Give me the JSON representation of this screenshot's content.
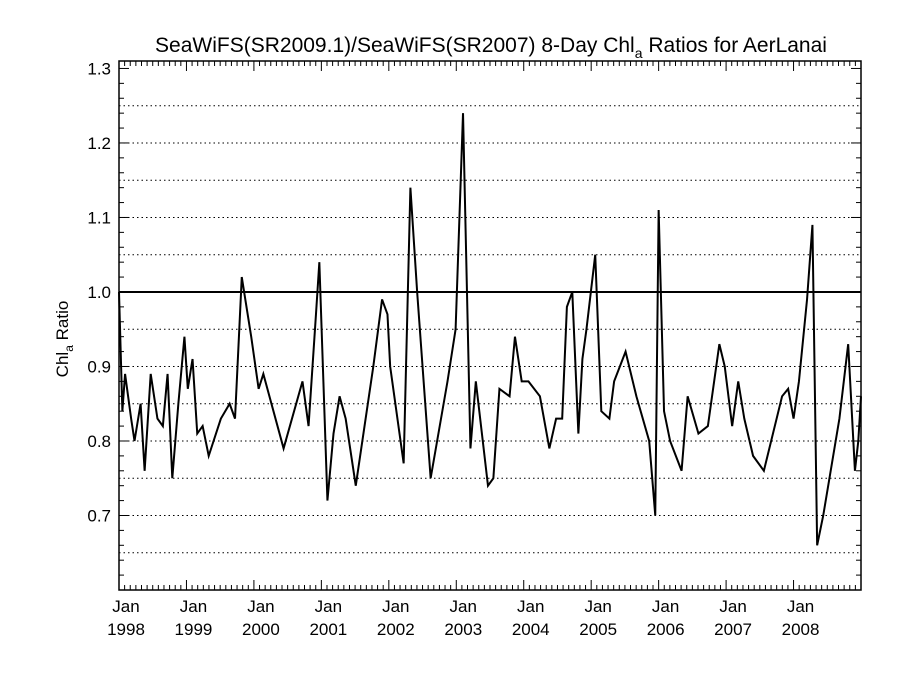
{
  "chart_data": {
    "type": "line",
    "title_main": "SeaWiFS(SR2009.1)/SeaWiFS(SR2007) 8-Day Chl",
    "title_sub": "a",
    "title_tail": " Ratios for AerLanai",
    "ylabel_main": "Chl",
    "ylabel_sub": "a",
    "ylabel_tail": " Ratio",
    "ylim": [
      0.6,
      1.31
    ],
    "xlim": [
      1998.0,
      2009.0
    ],
    "reference_line": 1.0,
    "y_ticks": [
      "0.7",
      "0.8",
      "0.9",
      "1.0",
      "1.1",
      "1.2",
      "1.3"
    ],
    "x_ticks": [
      {
        "month": "Jan",
        "year": "1998"
      },
      {
        "month": "Jan",
        "year": "1999"
      },
      {
        "month": "Jan",
        "year": "2000"
      },
      {
        "month": "Jan",
        "year": "2001"
      },
      {
        "month": "Jan",
        "year": "2002"
      },
      {
        "month": "Jan",
        "year": "2003"
      },
      {
        "month": "Jan",
        "year": "2004"
      },
      {
        "month": "Jan",
        "year": "2005"
      },
      {
        "month": "Jan",
        "year": "2006"
      },
      {
        "month": "Jan",
        "year": "2007"
      },
      {
        "month": "Jan",
        "year": "2008"
      }
    ],
    "grid": "dotted horizontal lines at 0.05 intervals",
    "series": [
      {
        "points": [
          [
            1998.0,
            1.0
          ],
          [
            1998.05,
            0.84
          ],
          [
            1998.09,
            0.89
          ],
          [
            1998.18,
            0.83
          ],
          [
            1998.23,
            0.8
          ],
          [
            1998.32,
            0.85
          ],
          [
            1998.38,
            0.76
          ],
          [
            1998.47,
            0.89
          ],
          [
            1998.57,
            0.83
          ],
          [
            1998.65,
            0.82
          ],
          [
            1998.72,
            0.89
          ],
          [
            1998.79,
            0.75
          ],
          [
            1998.88,
            0.85
          ],
          [
            1998.97,
            0.94
          ],
          [
            1999.02,
            0.87
          ],
          [
            1999.09,
            0.91
          ],
          [
            1999.16,
            0.81
          ],
          [
            1999.24,
            0.82
          ],
          [
            1999.33,
            0.78
          ],
          [
            1999.51,
            0.83
          ],
          [
            1999.64,
            0.85
          ],
          [
            1999.72,
            0.83
          ],
          [
            1999.82,
            1.02
          ],
          [
            1999.96,
            0.94
          ],
          [
            2000.07,
            0.87
          ],
          [
            2000.14,
            0.89
          ],
          [
            2000.44,
            0.79
          ],
          [
            2000.72,
            0.88
          ],
          [
            2000.81,
            0.82
          ],
          [
            2000.92,
            0.97
          ],
          [
            2000.97,
            1.04
          ],
          [
            2001.09,
            0.72
          ],
          [
            2001.18,
            0.81
          ],
          [
            2001.27,
            0.86
          ],
          [
            2001.36,
            0.83
          ],
          [
            2001.51,
            0.74
          ],
          [
            2001.77,
            0.9
          ],
          [
            2001.9,
            0.99
          ],
          [
            2001.98,
            0.97
          ],
          [
            2002.02,
            0.9
          ],
          [
            2002.22,
            0.77
          ],
          [
            2002.32,
            1.14
          ],
          [
            2002.42,
            1.0
          ],
          [
            2002.62,
            0.75
          ],
          [
            2002.87,
            0.88
          ],
          [
            2002.99,
            0.95
          ],
          [
            2003.1,
            1.24
          ],
          [
            2003.21,
            0.79
          ],
          [
            2003.29,
            0.88
          ],
          [
            2003.47,
            0.74
          ],
          [
            2003.55,
            0.75
          ],
          [
            2003.64,
            0.87
          ],
          [
            2003.79,
            0.86
          ],
          [
            2003.87,
            0.94
          ],
          [
            2003.97,
            0.88
          ],
          [
            2004.07,
            0.88
          ],
          [
            2004.24,
            0.86
          ],
          [
            2004.38,
            0.79
          ],
          [
            2004.48,
            0.83
          ],
          [
            2004.57,
            0.83
          ],
          [
            2004.64,
            0.98
          ],
          [
            2004.72,
            1.0
          ],
          [
            2004.81,
            0.81
          ],
          [
            2004.87,
            0.91
          ],
          [
            2004.93,
            0.95
          ],
          [
            2005.06,
            1.05
          ],
          [
            2005.15,
            0.84
          ],
          [
            2005.27,
            0.83
          ],
          [
            2005.34,
            0.88
          ],
          [
            2005.51,
            0.92
          ],
          [
            2005.67,
            0.86
          ],
          [
            2005.86,
            0.8
          ],
          [
            2005.95,
            0.7
          ],
          [
            2006.0,
            1.11
          ],
          [
            2006.08,
            0.84
          ],
          [
            2006.17,
            0.8
          ],
          [
            2006.34,
            0.76
          ],
          [
            2006.43,
            0.86
          ],
          [
            2006.59,
            0.81
          ],
          [
            2006.73,
            0.82
          ],
          [
            2006.9,
            0.93
          ],
          [
            2006.98,
            0.9
          ],
          [
            2007.09,
            0.82
          ],
          [
            2007.18,
            0.88
          ],
          [
            2007.27,
            0.83
          ],
          [
            2007.4,
            0.78
          ],
          [
            2007.56,
            0.76
          ],
          [
            2007.83,
            0.86
          ],
          [
            2007.92,
            0.87
          ],
          [
            2008.0,
            0.83
          ],
          [
            2008.08,
            0.88
          ],
          [
            2008.2,
            0.99
          ],
          [
            2008.28,
            1.09
          ],
          [
            2008.35,
            0.66
          ],
          [
            2008.44,
            0.7
          ],
          [
            2008.68,
            0.83
          ],
          [
            2008.81,
            0.93
          ],
          [
            2008.91,
            0.76
          ],
          [
            2008.96,
            0.8
          ],
          [
            2009.0,
            0.86
          ]
        ]
      }
    ]
  }
}
